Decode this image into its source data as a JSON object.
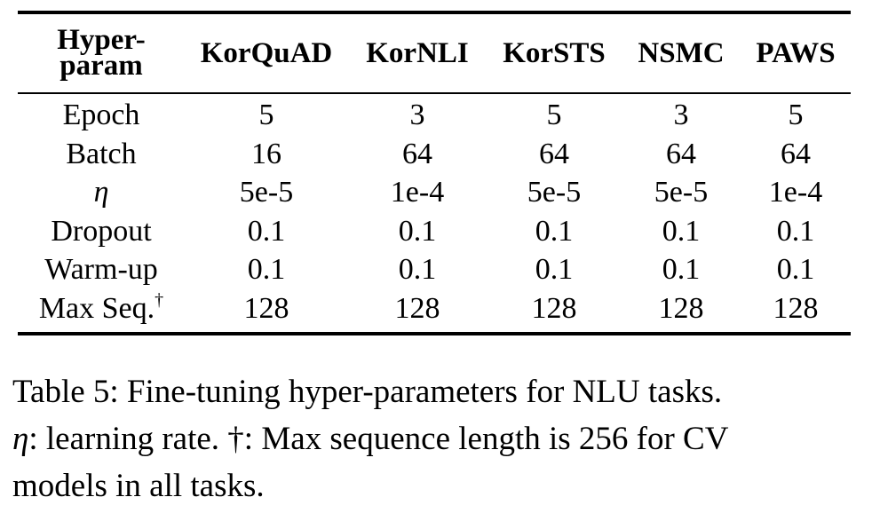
{
  "table": {
    "header": {
      "row_label": "Hyper-param",
      "row_label_line1": "Hyper-",
      "row_label_line2": "param",
      "columns": [
        "KorQuAD",
        "KorNLI",
        "KorSTS",
        "NSMC",
        "PAWS"
      ]
    },
    "rows": [
      {
        "label": "Epoch",
        "values": [
          "5",
          "3",
          "5",
          "3",
          "5"
        ]
      },
      {
        "label": "Batch",
        "values": [
          "16",
          "64",
          "64",
          "64",
          "64"
        ]
      },
      {
        "label": "η",
        "values": [
          "5e-5",
          "1e-4",
          "5e-5",
          "5e-5",
          "1e-4"
        ]
      },
      {
        "label": "Dropout",
        "values": [
          "0.1",
          "0.1",
          "0.1",
          "0.1",
          "0.1"
        ]
      },
      {
        "label": "Warm-up",
        "values": [
          "0.1",
          "0.1",
          "0.1",
          "0.1",
          "0.1"
        ]
      },
      {
        "label": "Max Seq.",
        "label_mark": "†",
        "values": [
          "128",
          "128",
          "128",
          "128",
          "128"
        ]
      }
    ]
  },
  "caption": {
    "line1": "Table 5: Fine-tuning hyper-parameters for NLU tasks.",
    "eta_symbol": "η",
    "line2_rest": ": learning rate. †: Max sequence length is 256 for CV",
    "line3": "models in all tasks."
  }
}
